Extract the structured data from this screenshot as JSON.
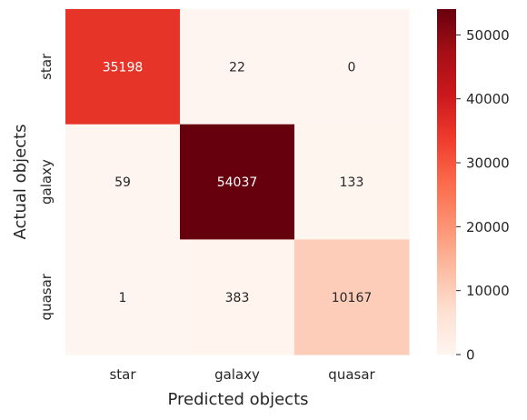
{
  "chart_data": {
    "type": "heatmap",
    "xlabel": "Predicted objects",
    "ylabel": "Actual objects",
    "x_categories": [
      "star",
      "galaxy",
      "quasar"
    ],
    "y_categories": [
      "star",
      "galaxy",
      "quasar"
    ],
    "values": [
      [
        35198,
        22,
        0
      ],
      [
        59,
        54037,
        133
      ],
      [
        1,
        383,
        10167
      ]
    ],
    "colorbar": {
      "min": 0,
      "max": 54037,
      "ticks": [
        0,
        10000,
        20000,
        30000,
        40000,
        50000
      ],
      "colormap": "Reds"
    },
    "colors": {
      "low": "#fff5f0",
      "high": "#67000d",
      "text_light": "#ffffff",
      "text_dark": "#262626"
    }
  }
}
